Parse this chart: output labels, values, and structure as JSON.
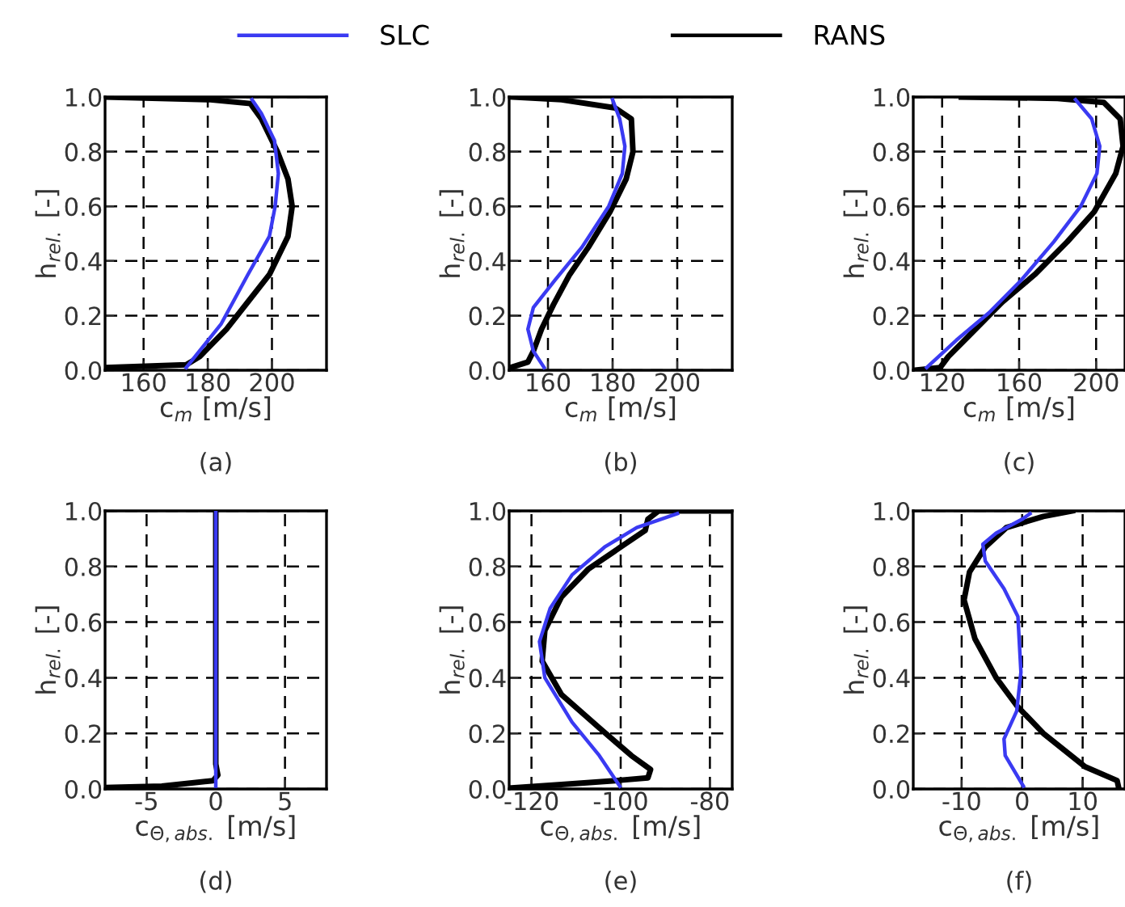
{
  "chart_data": [
    {
      "type": "line",
      "xlabel": "c$_{m}$ [m/s]",
      "ylabel": "h$_{rel.}$ [-]",
      "annotations": [
        "(a)"
      ],
      "xlim": [
        148,
        217
      ],
      "xticks": [
        160,
        180,
        200
      ],
      "ylim": [
        0,
        1
      ],
      "yticks": [
        {
          "value": 0,
          "label": "0.0"
        },
        {
          "value": 0.2,
          "label": "0.2"
        },
        {
          "value": 0.4,
          "label": "0.4"
        },
        {
          "value": 0.6,
          "label": "0.6"
        },
        {
          "value": 0.8,
          "label": "0.8"
        },
        {
          "value": 1,
          "label": "1.0"
        }
      ],
      "grid": true,
      "legend": "top",
      "line_style": "solid",
      "marker": "none",
      "series": [
        {
          "name": "SLC",
          "color": "#3a3af2",
          "x": [
            173.3,
            184.2,
            192.5,
            199.2,
            201,
            202,
            200.8,
            196.7,
            193.8
          ],
          "values": [
            0.01,
            0.17,
            0.35,
            0.49,
            0.6,
            0.72,
            0.84,
            0.94,
            0.99
          ]
        },
        {
          "name": "RANS",
          "color": "#000000",
          "x": [
            148,
            173.3,
            177.5,
            185.8,
            192.5,
            199.2,
            205,
            206.3,
            205,
            201.7,
            196.7,
            193.3,
            180.8,
            148
          ],
          "values": [
            0.01,
            0.02,
            0.05,
            0.15,
            0.25,
            0.35,
            0.49,
            0.6,
            0.7,
            0.8,
            0.92,
            0.976,
            0.99,
            1.0
          ]
        }
      ]
    },
    {
      "type": "line",
      "xlabel": "c$_{m}$ [m/s]",
      "ylabel": "h$_{rel.}$ [-]",
      "annotations": [
        "(b)"
      ],
      "xlim": [
        148,
        217
      ],
      "xticks": [
        160,
        180,
        200
      ],
      "ylim": [
        0,
        1
      ],
      "yticks": [
        {
          "value": 0,
          "label": "0.0"
        },
        {
          "value": 0.2,
          "label": "0.2"
        },
        {
          "value": 0.4,
          "label": "0.4"
        },
        {
          "value": 0.6,
          "label": "0.6"
        },
        {
          "value": 0.8,
          "label": "0.8"
        },
        {
          "value": 1,
          "label": "1.0"
        }
      ],
      "grid": true,
      "line_style": "solid",
      "marker": "none",
      "series": [
        {
          "color": "#3a3af2",
          "x": [
            158.8,
            155.5,
            153.8,
            155.5,
            162.2,
            170.5,
            178.8,
            183,
            183.8,
            182.2,
            180
          ],
          "values": [
            0.01,
            0.07,
            0.15,
            0.23,
            0.33,
            0.45,
            0.6,
            0.72,
            0.82,
            0.92,
            0.99
          ]
        },
        {
          "color": "#000000",
          "x": [
            148.5,
            153.8,
            155.5,
            158,
            161.7,
            166.7,
            172.5,
            179.2,
            184.2,
            186.3,
            185.8,
            180.8,
            164.2,
            148.5
          ],
          "values": [
            0.01,
            0.03,
            0.07,
            0.15,
            0.24,
            0.35,
            0.45,
            0.58,
            0.7,
            0.8,
            0.92,
            0.96,
            0.99,
            1.0
          ]
        }
      ]
    },
    {
      "type": "line",
      "xlabel": "c$_{m}$ [m/s]",
      "ylabel": "h$_{rel.}$ [-]",
      "annotations": [
        "(c)"
      ],
      "xlim": [
        105,
        215
      ],
      "xticks": [
        120,
        160,
        200
      ],
      "ylim": [
        0,
        1
      ],
      "yticks": [
        {
          "value": 0,
          "label": "0.0"
        },
        {
          "value": 0.2,
          "label": "0.2"
        },
        {
          "value": 0.4,
          "label": "0.4"
        },
        {
          "value": 0.6,
          "label": "0.6"
        },
        {
          "value": 0.8,
          "label": "0.8"
        },
        {
          "value": 1,
          "label": "1.0"
        }
      ],
      "grid": true,
      "line_style": "solid",
      "marker": "none",
      "series": [
        {
          "color": "#3a3af2",
          "x": [
            112,
            127.4,
            144.3,
            161.1,
            178,
            192,
            200.4,
            201.9,
            197.7,
            189.3
          ],
          "values": [
            0.01,
            0.11,
            0.21,
            0.33,
            0.47,
            0.6,
            0.72,
            0.82,
            0.92,
            0.99
          ]
        },
        {
          "color": "#000000",
          "x": [
            105.8,
            119,
            123.2,
            134.5,
            151.3,
            168.1,
            185,
            199,
            210.2,
            214,
            212.5,
            204,
            180,
            130
          ],
          "values": [
            0.0,
            0.01,
            0.05,
            0.13,
            0.25,
            0.35,
            0.47,
            0.58,
            0.72,
            0.82,
            0.92,
            0.98,
            0.995,
            1.0
          ]
        }
      ]
    },
    {
      "type": "line",
      "xlabel": "c$_{Θ,abs.}$ [m/s]",
      "ylabel": "h$_{rel.}$ [-]",
      "annotations": [
        "(d)"
      ],
      "xlim": [
        -8,
        8
      ],
      "xticks": [
        -5,
        0,
        5
      ],
      "ylim": [
        0,
        1
      ],
      "yticks": [
        {
          "value": 0,
          "label": "0.0"
        },
        {
          "value": 0.2,
          "label": "0.2"
        },
        {
          "value": 0.4,
          "label": "0.4"
        },
        {
          "value": 0.6,
          "label": "0.6"
        },
        {
          "value": 0.8,
          "label": "0.8"
        },
        {
          "value": 1,
          "label": "1.0"
        }
      ],
      "grid": true,
      "line_style": "solid",
      "marker": "none",
      "series": [
        {
          "color": "#3a3af2",
          "x": [
            0,
            0
          ],
          "values": [
            0.01,
            1.0
          ]
        },
        {
          "color": "#000000",
          "x": [
            -8,
            -3.9,
            -0.2,
            0.15,
            0,
            0
          ],
          "values": [
            0.005,
            0.01,
            0.03,
            0.05,
            0.09,
            1.0
          ]
        }
      ]
    },
    {
      "type": "line",
      "xlabel": "c$_{Θ,abs.}$ [m/s]",
      "ylabel": "h$_{rel.}$ [-]",
      "annotations": [
        "(e)"
      ],
      "xlim": [
        -125,
        -75
      ],
      "xticks": [
        -120,
        -100,
        -80
      ],
      "ylim": [
        0,
        1
      ],
      "yticks": [
        {
          "value": 0,
          "label": "0.0"
        },
        {
          "value": 0.2,
          "label": "0.2"
        },
        {
          "value": 0.4,
          "label": "0.4"
        },
        {
          "value": 0.6,
          "label": "0.6"
        },
        {
          "value": 0.8,
          "label": "0.8"
        },
        {
          "value": 1,
          "label": "1.0"
        }
      ],
      "grid": true,
      "line_style": "solid",
      "marker": "none",
      "series": [
        {
          "color": "#3a3af2",
          "x": [
            -100.2,
            -104.8,
            -110.9,
            -117,
            -118.2,
            -115.8,
            -110.9,
            -103.6,
            -96.4,
            -87.3
          ],
          "values": [
            0.01,
            0.12,
            0.24,
            0.4,
            0.53,
            0.65,
            0.77,
            0.87,
            0.94,
            0.99
          ]
        },
        {
          "color": "#000000",
          "x": [
            -124.5,
            -113.3,
            -101.2,
            -93.9,
            -93.3,
            -97.6,
            -104.8,
            -113.3,
            -117.6,
            -117,
            -113.3,
            -107.3,
            -100,
            -94.5,
            -93.9,
            -91.5,
            -75.5
          ],
          "values": [
            0.004,
            0.016,
            0.03,
            0.04,
            0.07,
            0.12,
            0.22,
            0.34,
            0.46,
            0.57,
            0.69,
            0.79,
            0.87,
            0.93,
            0.97,
            1.0,
            1.0
          ]
        }
      ]
    },
    {
      "type": "line",
      "xlabel": "c$_{Θ,abs.}$ [m/s]",
      "ylabel": "h$_{rel.}$ [-]",
      "annotations": [
        "(f)"
      ],
      "xlim": [
        -18,
        17
      ],
      "xticks": [
        -10,
        0,
        10
      ],
      "ylim": [
        0,
        1
      ],
      "yticks": [
        {
          "value": 0,
          "label": "0.0"
        },
        {
          "value": 0.2,
          "label": "0.2"
        },
        {
          "value": 0.4,
          "label": "0.4"
        },
        {
          "value": 0.6,
          "label": "0.6"
        },
        {
          "value": 0.8,
          "label": "0.8"
        },
        {
          "value": 1,
          "label": "1.0"
        }
      ],
      "grid": true,
      "line_style": "solid",
      "marker": "none",
      "series": [
        {
          "color": "#3a3af2",
          "x": [
            0.2,
            -2.8,
            -3,
            -0.9,
            -0.2,
            -0.7,
            -3,
            -6.1,
            -6.5,
            -4.3,
            0,
            1.3
          ],
          "values": [
            0.01,
            0.12,
            0.18,
            0.28,
            0.42,
            0.62,
            0.72,
            0.82,
            0.88,
            0.92,
            0.97,
            0.99
          ]
        },
        {
          "color": "#000000",
          "x": [
            16,
            15.7,
            10.4,
            3.5,
            -0.9,
            -4.3,
            -7.8,
            -9.6,
            -8.7,
            -6.1,
            -2.6,
            3.5,
            8.3
          ],
          "values": [
            0.0,
            0.03,
            0.08,
            0.2,
            0.3,
            0.4,
            0.54,
            0.68,
            0.78,
            0.87,
            0.94,
            0.98,
            1.0
          ]
        }
      ]
    }
  ]
}
